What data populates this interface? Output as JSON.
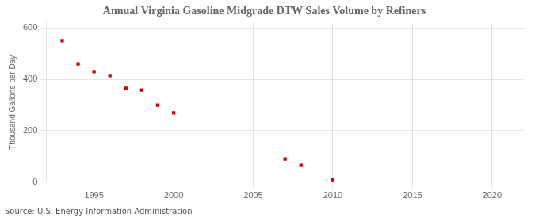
{
  "chart_data": {
    "type": "scatter",
    "title": "Annual Virginia Gasoline Midgrade DTW Sales Volume by Refiners",
    "ylabel": "Thousand Gallons per Day",
    "source": "Source: U.S. Energy Information Administration",
    "x": [
      1993,
      1994,
      1995,
      1996,
      1997,
      1998,
      1999,
      2000,
      2007,
      2008,
      2010
    ],
    "values": [
      550,
      460,
      430,
      415,
      365,
      358,
      300,
      270,
      90,
      65,
      10
    ],
    "color": "#cc0000",
    "marker": "square",
    "xlim": [
      1992,
      2022
    ],
    "ylim": [
      0,
      620
    ],
    "xticks": [
      1995,
      2000,
      2005,
      2010,
      2015,
      2020
    ],
    "yticks": [
      0,
      200,
      400,
      600
    ],
    "grid": true
  }
}
